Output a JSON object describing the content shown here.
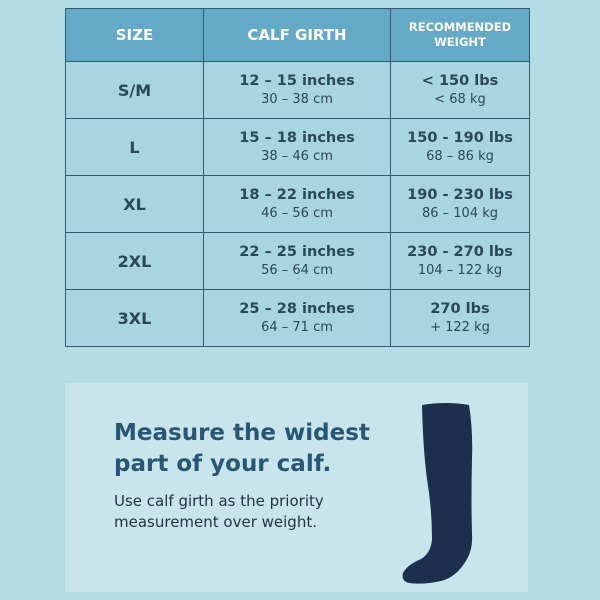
{
  "table": {
    "headers": [
      "SIZE",
      "CALF GIRTH",
      "RECOMMENDED WEIGHT"
    ],
    "rows": [
      {
        "size": "S/M",
        "girth_in": "12 – 15 inches",
        "girth_cm": "30 – 38 cm",
        "weight_lbs": "< 150 lbs",
        "weight_kg": "< 68 kg"
      },
      {
        "size": "L",
        "girth_in": "15 – 18 inches",
        "girth_cm": "38 – 46 cm",
        "weight_lbs": "150 - 190 lbs",
        "weight_kg": "68 – 86 kg"
      },
      {
        "size": "XL",
        "girth_in": "18 – 22 inches",
        "girth_cm": "46 – 56 cm",
        "weight_lbs": "190 - 230 lbs",
        "weight_kg": "86 – 104 kg"
      },
      {
        "size": "2XL",
        "girth_in": "22 – 25 inches",
        "girth_cm": "56 – 64 cm",
        "weight_lbs": "230 - 270 lbs",
        "weight_kg": "104 – 122 kg"
      },
      {
        "size": "3XL",
        "girth_in": "25 – 28 inches",
        "girth_cm": "64 – 71 cm",
        "weight_lbs": "270 lbs",
        "weight_kg": "+ 122 kg"
      }
    ]
  },
  "tip": {
    "heading_line1": "Measure the widest",
    "heading_line2": "part of your calf.",
    "body_line1": "Use calf girth as the priority",
    "body_line2": "measurement over weight.",
    "icon": "sock-icon"
  },
  "colors": {
    "background": "#b4dce5",
    "header": "#64a9c5",
    "cell": "#a8d5e1",
    "border": "#2f5b74",
    "sock": "#1c2f4c"
  }
}
